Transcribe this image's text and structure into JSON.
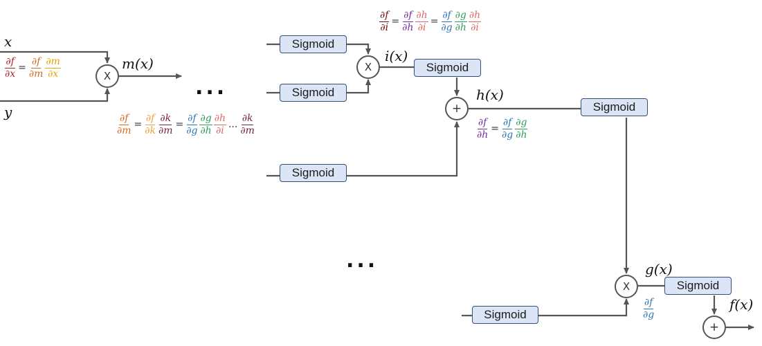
{
  "nodes": {
    "sigmoid_label": "Sigmoid",
    "mult_symbol": "X",
    "add_symbol": "+"
  },
  "variables": {
    "x": "x",
    "y": "y",
    "m": "m(x)",
    "i": "i(x)",
    "h": "h(x)",
    "g": "g(x)",
    "f": "f(x)"
  },
  "ellipsis": "...",
  "inline_ellipsis": "...",
  "equations": {
    "eq1": {
      "lhs": {
        "num": "∂f",
        "den": "∂x"
      },
      "t1": {
        "num": "∂f",
        "den": "∂m"
      },
      "t2": {
        "num": "∂m",
        "den": "∂x"
      }
    },
    "eq2": {
      "lhs": {
        "num": "∂f",
        "den": "∂m"
      },
      "t1": {
        "num": "∂f",
        "den": "∂k"
      },
      "t2": {
        "num": "∂k",
        "den": "∂m"
      },
      "t3": {
        "num": "∂f",
        "den": "∂g"
      },
      "t4": {
        "num": "∂g",
        "den": "∂h"
      },
      "t5": {
        "num": "∂h",
        "den": "∂i"
      },
      "t6": {
        "num": "∂k",
        "den": "∂m"
      }
    },
    "eq3": {
      "lhs": {
        "num": "∂f",
        "den": "∂i"
      },
      "t1": {
        "num": "∂f",
        "den": "∂h"
      },
      "t2": {
        "num": "∂h",
        "den": "∂i"
      },
      "t3": {
        "num": "∂f",
        "den": "∂g"
      },
      "t4": {
        "num": "∂g",
        "den": "∂h"
      },
      "t5": {
        "num": "∂h",
        "den": "∂i"
      }
    },
    "eq4": {
      "lhs": {
        "num": "∂f",
        "den": "∂h"
      },
      "t1": {
        "num": "∂f",
        "den": "∂g"
      },
      "t2": {
        "num": "∂g",
        "den": "∂h"
      }
    },
    "eq5": {
      "lhs": {
        "num": "∂f",
        "den": "∂g"
      }
    },
    "equals": "="
  }
}
